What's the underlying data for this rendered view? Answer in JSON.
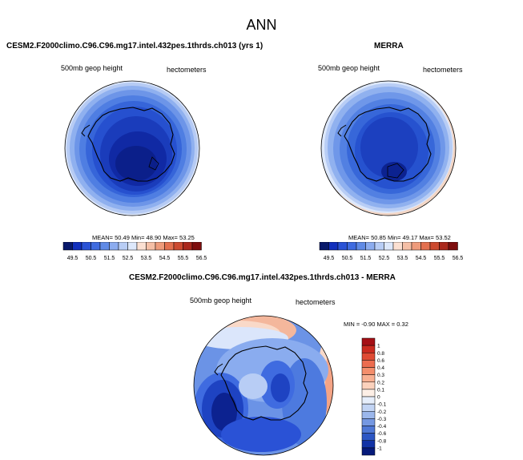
{
  "main_title": "ANN",
  "panels": {
    "model": {
      "title": "CESM2.F2000climo.C96.C96.mg17.intel.432pes.1thrds.ch013 (yrs 1)",
      "left_label": "500mb geop height",
      "right_label": "hectometers",
      "stats": "MEAN= 50.49  Min= 48.90  Max= 53.25"
    },
    "obs": {
      "title": "MERRA",
      "left_label": "500mb geop height",
      "right_label": "hectometers",
      "stats": "MEAN= 50.85  Min= 49.17  Max= 53.52"
    },
    "diff": {
      "title": "CESM2.F2000climo.C96.C96.mg17.intel.432pes.1thrds.ch013 - MERRA",
      "left_label": "500mb geop height",
      "right_label": "hectometers",
      "stats": "MIN = -0.90 MAX = 0.32"
    }
  },
  "chart_data": [
    {
      "type": "heatmap",
      "title": "CESM2.F2000climo.C96.C96.mg17.intel.432pes.1thrds.ch013 (yrs 1)",
      "variable": "500mb geop height",
      "units": "hectometers",
      "mean": 50.49,
      "min": 48.9,
      "max": 53.25,
      "colorbar_ticks": [
        "49.5",
        "50.5",
        "51.5",
        "52.5",
        "53.5",
        "54.5",
        "55.5",
        "56.5"
      ],
      "colorbar_colors": [
        "#08196b",
        "#112fbd",
        "#2a52d6",
        "#3f6be0",
        "#5f8ae6",
        "#8cacef",
        "#b8cdf5",
        "#dde8fb",
        "#fbe0d2",
        "#f5bfa6",
        "#ee9b7b",
        "#e3704f",
        "#cc4a30",
        "#aa281c",
        "#7e0d0d"
      ],
      "projection": "south-polar-stereographic"
    },
    {
      "type": "heatmap",
      "title": "MERRA",
      "variable": "500mb geop height",
      "units": "hectometers",
      "mean": 50.85,
      "min": 49.17,
      "max": 53.52,
      "colorbar_ticks": [
        "49.5",
        "50.5",
        "51.5",
        "52.5",
        "53.5",
        "54.5",
        "55.5",
        "56.5"
      ],
      "colorbar_colors": [
        "#08196b",
        "#112fbd",
        "#2a52d6",
        "#3f6be0",
        "#5f8ae6",
        "#8cacef",
        "#b8cdf5",
        "#dde8fb",
        "#fbe0d2",
        "#f5bfa6",
        "#ee9b7b",
        "#e3704f",
        "#cc4a30",
        "#aa281c",
        "#7e0d0d"
      ],
      "projection": "south-polar-stereographic"
    },
    {
      "type": "heatmap",
      "title": "CESM2.F2000climo.C96.C96.mg17.intel.432pes.1thrds.ch013 - MERRA",
      "variable": "500mb geop height",
      "units": "hectometers",
      "min": -0.9,
      "max": 0.32,
      "colorbar_ticks": [
        "1",
        "0.8",
        "0.6",
        "0.4",
        "0.3",
        "0.2",
        "0.1",
        "0",
        "-0.1",
        "-0.2",
        "-0.3",
        "-0.4",
        "-0.6",
        "-0.8",
        "-1"
      ],
      "colorbar_colors": [
        "#a50f15",
        "#cb2a1f",
        "#df4a33",
        "#ec6c4f",
        "#f48e6c",
        "#f8b092",
        "#fbd1bc",
        "#fdefe6",
        "#e6eefb",
        "#c2d4f4",
        "#9bb7ec",
        "#7598e2",
        "#4f78d6",
        "#2c56c4",
        "#1233a6",
        "#061a7a"
      ],
      "projection": "south-polar-stereographic"
    }
  ]
}
